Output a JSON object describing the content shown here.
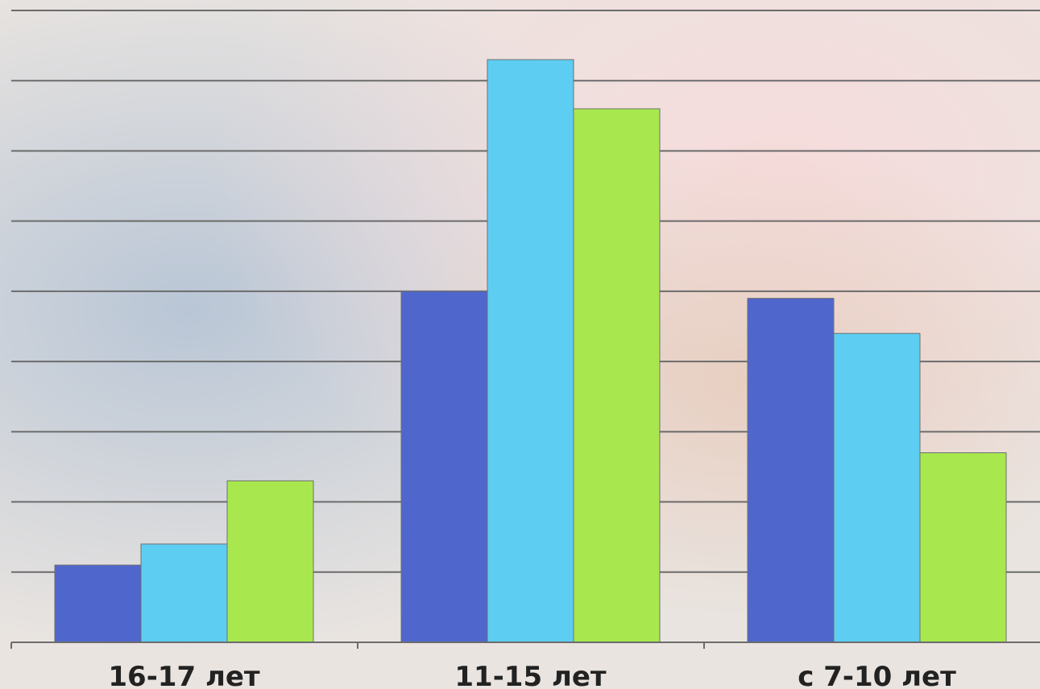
{
  "chart_data": {
    "type": "bar",
    "categories": [
      "16-17 лет",
      "11-15 лет",
      "с 7-10 лет"
    ],
    "series": [
      {
        "values": [
          11,
          50,
          49
        ]
      },
      {
        "values": [
          14,
          83,
          44
        ]
      },
      {
        "values": [
          23,
          76,
          27
        ]
      }
    ],
    "ylim": [
      0,
      90
    ],
    "grid": true,
    "gridlines": 9,
    "legend": "none",
    "series_colors": [
      "#4f66cc",
      "#5ecdf2",
      "#a8e84e"
    ]
  }
}
